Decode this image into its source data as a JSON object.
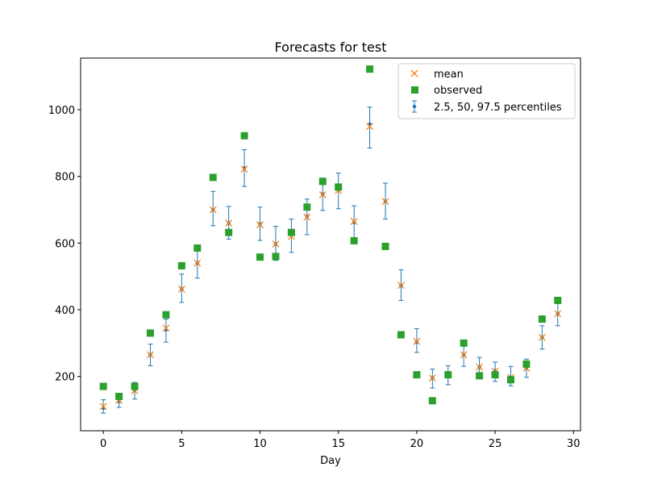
{
  "chart_data": {
    "type": "scatter",
    "title": "Forecasts for test",
    "xlabel": "Day",
    "ylabel": "",
    "xlim": [
      -1.45,
      30.45
    ],
    "ylim": [
      37,
      1155
    ],
    "xticks": [
      0,
      5,
      10,
      15,
      20,
      25,
      30
    ],
    "yticks": [
      200,
      400,
      600,
      800,
      1000
    ],
    "grid": false,
    "legend_position": "upper right",
    "colors": {
      "mean": "#ff7f0e",
      "observed": "#2ca02c",
      "percentiles": "#1f77b4"
    },
    "legend": [
      {
        "key": "mean",
        "label": "mean",
        "marker": "x"
      },
      {
        "key": "observed",
        "label": "observed",
        "marker": "square"
      },
      {
        "key": "percentiles",
        "label": "2.5, 50, 97.5 percentiles",
        "marker": "errorbar"
      }
    ],
    "x": [
      0,
      1,
      2,
      3,
      4,
      5,
      6,
      7,
      8,
      9,
      10,
      11,
      12,
      13,
      14,
      15,
      16,
      17,
      18,
      19,
      20,
      21,
      22,
      23,
      24,
      25,
      26,
      27,
      28,
      29
    ],
    "mean": [
      110,
      128,
      157,
      265,
      345,
      462,
      540,
      700,
      660,
      822,
      655,
      597,
      620,
      678,
      745,
      758,
      665,
      950,
      725,
      473,
      305,
      195,
      205,
      265,
      228,
      215,
      197,
      225,
      317,
      388
    ],
    "observed": [
      170,
      140,
      170,
      330,
      385,
      532,
      585,
      797,
      632,
      922,
      558,
      560,
      632,
      708,
      785,
      768,
      607,
      1122,
      590,
      325,
      205,
      127,
      205,
      300,
      202,
      205,
      190,
      237,
      372,
      428
    ],
    "percentile_2_5": [
      90,
      107,
      132,
      232,
      303,
      422,
      495,
      652,
      612,
      770,
      608,
      548,
      572,
      625,
      698,
      703,
      612,
      885,
      672,
      428,
      272,
      165,
      175,
      230,
      203,
      185,
      172,
      197,
      282,
      352
    ],
    "percentile_50": [
      105,
      125,
      158,
      265,
      340,
      462,
      540,
      700,
      660,
      825,
      657,
      597,
      625,
      680,
      747,
      760,
      662,
      957,
      725,
      472,
      303,
      195,
      200,
      265,
      228,
      217,
      197,
      225,
      317,
      388
    ],
    "percentile_97_5": [
      130,
      148,
      182,
      297,
      372,
      507,
      582,
      755,
      710,
      880,
      708,
      650,
      672,
      732,
      795,
      810,
      712,
      1008,
      780,
      520,
      343,
      222,
      232,
      297,
      257,
      243,
      230,
      252,
      352,
      425
    ]
  }
}
